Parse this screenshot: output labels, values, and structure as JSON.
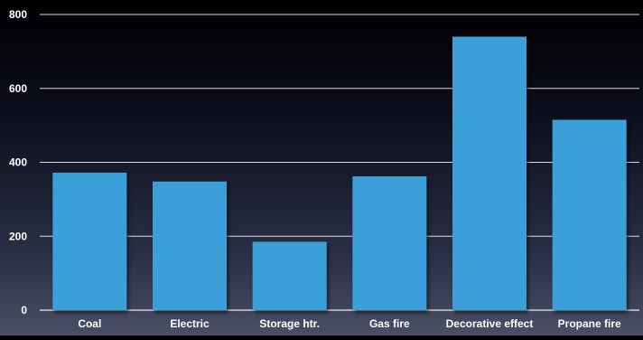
{
  "chart_data": {
    "type": "bar",
    "title": "",
    "xlabel": "",
    "ylabel": "",
    "categories": [
      "Coal",
      "Electric",
      "Storage htr.",
      "Gas fire",
      "Decorative effect",
      "Propane fire"
    ],
    "values": [
      372,
      348,
      185,
      362,
      740,
      515
    ],
    "ylim": [
      0,
      800
    ],
    "yticks": [
      0,
      200,
      400,
      600,
      800
    ],
    "grid": true,
    "legend": "none",
    "bar_color": "#3aa0da"
  }
}
